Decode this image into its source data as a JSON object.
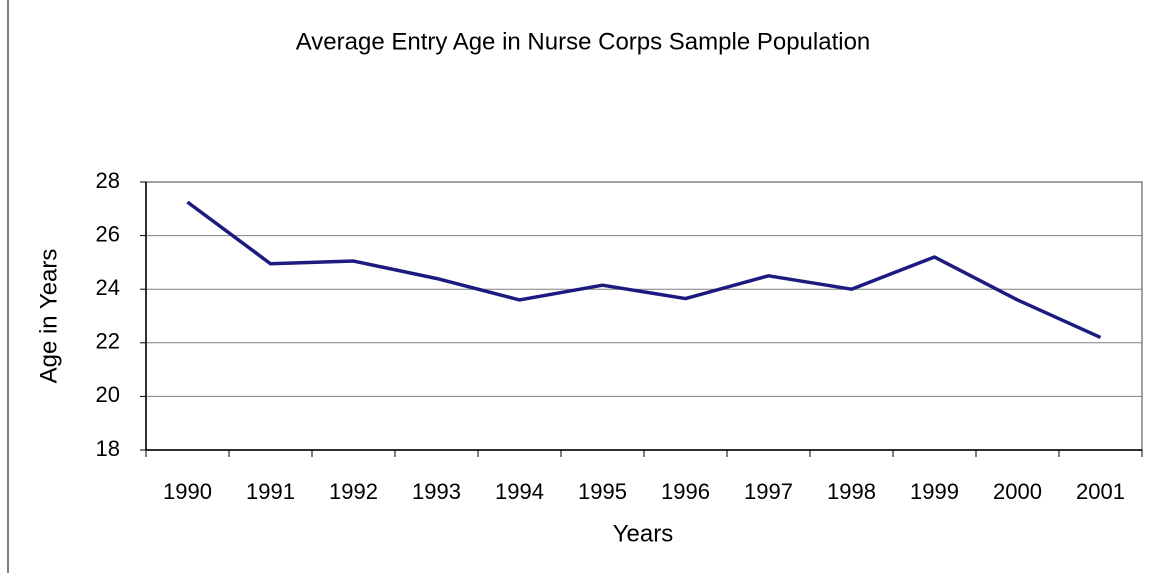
{
  "chart_data": {
    "type": "line",
    "title": "Average Entry Age in Nurse Corps Sample Population",
    "x_label": "Years",
    "y_label": "Age in Years",
    "categories": [
      "1990",
      "1991",
      "1992",
      "1993",
      "1994",
      "1995",
      "1996",
      "1997",
      "1998",
      "1999",
      "2000",
      "2001"
    ],
    "series": [
      {
        "name": "Average Entry Age",
        "color": "#1c1c80",
        "values": [
          27.25,
          24.95,
          25.05,
          24.4,
          23.6,
          24.15,
          23.65,
          24.5,
          24.0,
          25.2,
          23.6,
          22.2
        ]
      }
    ],
    "ylim": [
      18,
      28
    ],
    "yticks": [
      18,
      20,
      22,
      24,
      26,
      28
    ],
    "grid": true,
    "legend": false
  }
}
